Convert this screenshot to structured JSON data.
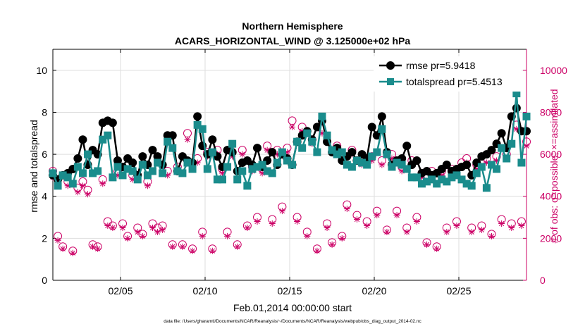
{
  "chart_data": {
    "type": "line",
    "title": "Northern Hemisphere",
    "subtitle": "ACARS_HORIZONTAL_WIND @ 3.125000e+02 hPa",
    "xlabel": "Feb.01,2014 00:00:00 start",
    "ylabel": "rmse and totalspread",
    "y2label": "# of obs: o=possible; ×=assimilated",
    "footnote": "data file: /Users/gharamti/Documents/NCAR/Reanalysis/~/Documents/NCAR/Reanalysis/webpub/obs_diag_output_2014-02.nc",
    "xlim": [
      1,
      29
    ],
    "ylim": [
      0,
      11
    ],
    "y2lim": [
      0,
      11000
    ],
    "xticks": [
      5,
      10,
      15,
      20,
      25
    ],
    "xtick_labels": [
      "02/05",
      "02/10",
      "02/15",
      "02/20",
      "02/25"
    ],
    "yticks": [
      0,
      2,
      4,
      6,
      8,
      10
    ],
    "ytick_labels": [
      "0",
      "2",
      "4",
      "6",
      "8",
      "10"
    ],
    "y2ticks": [
      0,
      2000,
      4000,
      6000,
      8000,
      10000
    ],
    "y2tick_labels": [
      "0",
      "2000",
      "4000",
      "6000",
      "8000",
      "10000"
    ],
    "grid": true,
    "legend_position": "top-right",
    "colors": {
      "rmse": "#000000",
      "totalspread": "#1a8c8c",
      "obs": "#cc0066",
      "grid": "#dddddd"
    },
    "series": [
      {
        "name": "rmse pr=5.9418",
        "axis": "left",
        "values": [
          5.0,
          4.8,
          5.0,
          5.1,
          5.3,
          5.8,
          6.7,
          5.5,
          6.2,
          6.0,
          7.5,
          7.6,
          7.5,
          5.7,
          5.4,
          5.8,
          5.6,
          5.0,
          5.9,
          5.5,
          6.2,
          5.9,
          5.5,
          6.9,
          6.9,
          5.2,
          5.9,
          5.7,
          5.6,
          7.8,
          6.4,
          6.0,
          6.7,
          5.9,
          5.4,
          6.2,
          6.1,
          5.2,
          5.6,
          5.7,
          5.5,
          6.3,
          5.4,
          5.7,
          6.1,
          5.5,
          6.0,
          5.8,
          5.5,
          6.6,
          6.9,
          7.1,
          6.7,
          7.3,
          7.6,
          6.6,
          6.1,
          6.3,
          5.7,
          5.9,
          6.1,
          5.7,
          6.0,
          5.8,
          7.3,
          6.9,
          7.8,
          6.1,
          5.5,
          5.7,
          5.8,
          6.4,
          5.5,
          5.7,
          5.1,
          5.2,
          5.0,
          5.1,
          5.3,
          5.5,
          5.2,
          5.3,
          5.4,
          5.5,
          5.0,
          5.6,
          5.9,
          6.0,
          6.2,
          6.5,
          7.0,
          6.3,
          7.8,
          8.2,
          7.1,
          7.1
        ]
      },
      {
        "name": "totalspread pr=5.4513",
        "axis": "left",
        "values": [
          5.1,
          4.5,
          5.0,
          4.9,
          4.6,
          5.4,
          5.1,
          6.0,
          5.1,
          5.2,
          6.7,
          6.9,
          4.9,
          5.4,
          5.0,
          5.3,
          5.2,
          4.8,
          5.5,
          5.0,
          5.2,
          5.6,
          5.1,
          6.6,
          6.3,
          5.2,
          5.1,
          5.6,
          5.3,
          7.4,
          7.2,
          5.3,
          6.1,
          4.8,
          4.8,
          5.4,
          6.5,
          4.8,
          5.2,
          4.5,
          5.3,
          5.4,
          5.5,
          5.2,
          5.1,
          5.6,
          6.1,
          5.7,
          5.5,
          6.6,
          6.3,
          7.0,
          6.6,
          6.1,
          7.8,
          6.9,
          6.2,
          6.0,
          6.1,
          5.5,
          5.4,
          5.7,
          5.6,
          5.5,
          5.9,
          6.1,
          7.2,
          6.0,
          5.4,
          5.6,
          5.5,
          5.3,
          4.9,
          4.9,
          4.6,
          4.7,
          4.8,
          4.6,
          4.8,
          4.7,
          4.9,
          5.0,
          4.8,
          4.6,
          4.5,
          5.1,
          5.4,
          4.4,
          5.5,
          5.3,
          6.3,
          5.8,
          6.5,
          8.9,
          5.6,
          7.8
        ]
      },
      {
        "name": "possible",
        "axis": "right",
        "values": [
          5200,
          2100,
          1600,
          4700,
          1400,
          4400,
          4700,
          4300,
          1700,
          1600,
          4800,
          2800,
          2600,
          5200,
          2700,
          2100,
          5000,
          2500,
          2200,
          4700,
          2700,
          2500,
          2600,
          5200,
          1700,
          5400,
          1700,
          7000,
          1500,
          5800,
          2300,
          6100,
          1500,
          6200,
          5300,
          2300,
          6100,
          1700,
          6200,
          2600,
          5400,
          3000,
          5300,
          6400,
          2900,
          6200,
          3500,
          6300,
          7600,
          3000,
          7300,
          2300,
          6700,
          1500,
          7200,
          2700,
          1800,
          6400,
          2100,
          3600,
          6200,
          3100,
          5700,
          2800,
          5900,
          3300,
          5700,
          2400,
          6000,
          3300,
          5400,
          2500,
          5700,
          3000,
          5100,
          1800,
          5200,
          1600,
          5200,
          2500,
          5300,
          2800,
          5600,
          5800,
          2500,
          5500,
          2600,
          5800,
          2200,
          5900,
          2900,
          6000,
          2700,
          7400,
          2800,
          6600
        ]
      },
      {
        "name": "assimilated",
        "axis": "right",
        "values": [
          4900,
          1900,
          1500,
          4500,
          1300,
          4200,
          4500,
          4100,
          1600,
          1500,
          4600,
          2600,
          2500,
          5000,
          2500,
          2000,
          4800,
          2300,
          2100,
          4500,
          2500,
          2300,
          2400,
          5000,
          1600,
          5200,
          1600,
          6700,
          1400,
          5600,
          2100,
          5900,
          1400,
          6000,
          5100,
          2100,
          5900,
          1600,
          6000,
          2500,
          5200,
          2800,
          5100,
          6200,
          2700,
          6000,
          3300,
          6100,
          7300,
          2800,
          7100,
          2100,
          6500,
          1400,
          7000,
          2500,
          1700,
          6200,
          2000,
          3400,
          6000,
          2900,
          5500,
          2600,
          5700,
          3100,
          5500,
          2300,
          5800,
          3100,
          5200,
          2300,
          5500,
          2800,
          4900,
          1700,
          5000,
          1500,
          5000,
          2300,
          5100,
          2600,
          5400,
          5600,
          2300,
          5300,
          2400,
          5600,
          2100,
          5700,
          2700,
          5800,
          2500,
          7200,
          2600,
          6400
        ]
      }
    ]
  }
}
